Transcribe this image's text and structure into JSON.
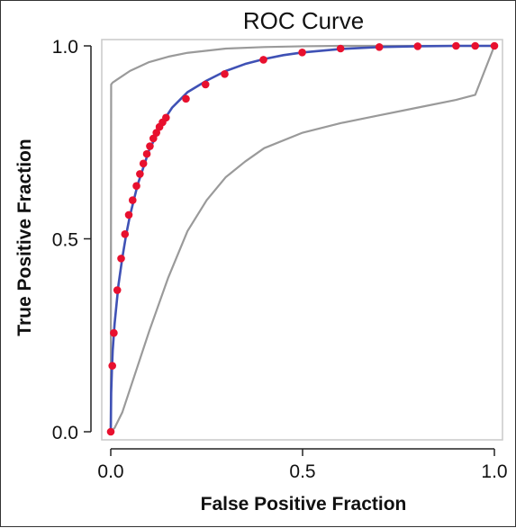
{
  "chart_data": {
    "type": "line",
    "title": "ROC Curve",
    "xlabel": "False Positive Fraction",
    "ylabel": "True Positive Fraction",
    "xlim": [
      0,
      1
    ],
    "ylim": [
      0,
      1
    ],
    "xticks": [
      0,
      0.5,
      1
    ],
    "xtick_labels": [
      "0.0",
      "0.5",
      "1.0"
    ],
    "yticks": [
      0,
      0.5,
      1
    ],
    "ytick_labels": [
      "0.0",
      "0.5",
      "1.0"
    ],
    "grid": false,
    "legend": "none",
    "series": [
      {
        "role": "roc-fitted-curve",
        "color": "#3f51b5",
        "x": [
          0,
          0.001,
          0.003,
          0.005,
          0.01,
          0.015,
          0.02,
          0.03,
          0.04,
          0.05,
          0.06,
          0.07,
          0.08,
          0.09,
          0.1,
          0.12,
          0.14,
          0.16,
          0.18,
          0.2,
          0.25,
          0.3,
          0.35,
          0.4,
          0.45,
          0.5,
          0.6,
          0.7,
          0.8,
          0.9,
          1.0
        ],
        "y": [
          0,
          0.1,
          0.16,
          0.21,
          0.28,
          0.33,
          0.38,
          0.45,
          0.51,
          0.56,
          0.6,
          0.64,
          0.67,
          0.7,
          0.73,
          0.77,
          0.81,
          0.84,
          0.86,
          0.88,
          0.91,
          0.935,
          0.953,
          0.966,
          0.976,
          0.983,
          0.992,
          0.997,
          0.999,
          1.0,
          1.0
        ]
      },
      {
        "role": "roc-operating-points",
        "color": "#e8102e",
        "x": [
          0,
          0.004,
          0.008,
          0.017,
          0.027,
          0.037,
          0.047,
          0.057,
          0.067,
          0.076,
          0.085,
          0.094,
          0.102,
          0.111,
          0.119,
          0.127,
          0.135,
          0.144,
          0.196,
          0.247,
          0.297,
          0.398,
          0.499,
          0.599,
          0.7,
          0.8,
          0.9,
          0.95,
          1.0
        ],
        "y": [
          0,
          0.171,
          0.256,
          0.367,
          0.449,
          0.512,
          0.562,
          0.6,
          0.637,
          0.668,
          0.695,
          0.72,
          0.74,
          0.76,
          0.775,
          0.79,
          0.802,
          0.814,
          0.863,
          0.9,
          0.927,
          0.964,
          0.983,
          0.993,
          0.997,
          0.999,
          1.0,
          1.0,
          1.0
        ]
      },
      {
        "role": "upper-confidence-bound",
        "color": "#9a9a9a",
        "x": [
          0,
          0.001,
          0.005,
          0.02,
          0.05,
          0.1,
          0.15,
          0.2,
          0.3,
          0.4,
          0.5,
          0.6,
          0.7,
          0.8,
          0.9,
          1.0
        ],
        "y": [
          0,
          0.9,
          0.905,
          0.915,
          0.935,
          0.958,
          0.972,
          0.982,
          0.993,
          0.997,
          0.999,
          1.0,
          1.0,
          1.0,
          1.0,
          1.0
        ]
      },
      {
        "role": "lower-confidence-bound",
        "color": "#9a9a9a",
        "x": [
          0,
          0.01,
          0.03,
          0.06,
          0.1,
          0.15,
          0.2,
          0.25,
          0.3,
          0.35,
          0.4,
          0.5,
          0.6,
          0.7,
          0.8,
          0.9,
          0.95,
          1.0
        ],
        "y": [
          0,
          0.01,
          0.05,
          0.14,
          0.26,
          0.4,
          0.52,
          0.6,
          0.66,
          0.7,
          0.735,
          0.775,
          0.8,
          0.82,
          0.84,
          0.86,
          0.873,
          1.0
        ]
      }
    ]
  }
}
